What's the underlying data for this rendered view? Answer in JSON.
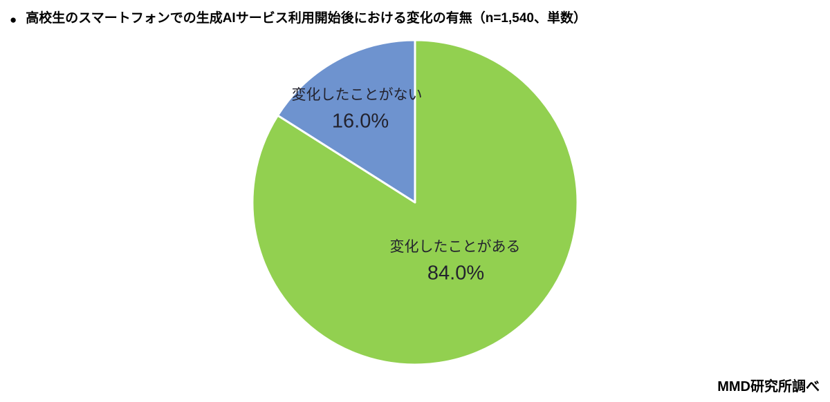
{
  "title": {
    "bullet": "●",
    "text": "高校生のスマートフォンでの生成AIサービス利用開始後における変化の有無（n=1,540、単数）"
  },
  "source": "MMD研究所調べ",
  "chart_data": {
    "type": "pie",
    "title": "高校生のスマートフォンでの生成AIサービス利用開始後における変化の有無",
    "sample": "n=1,540",
    "answer_type": "単数",
    "start_angle_deg": -90,
    "direction": "clockwise",
    "separator_color": "#FFFFFF",
    "slices": [
      {
        "name": "変化したことがある",
        "value": 84.0,
        "label": "84.0%",
        "color": "#92D050"
      },
      {
        "name": "変化したことがない",
        "value": 16.0,
        "label": "16.0%",
        "color": "#6E93CF"
      }
    ]
  }
}
